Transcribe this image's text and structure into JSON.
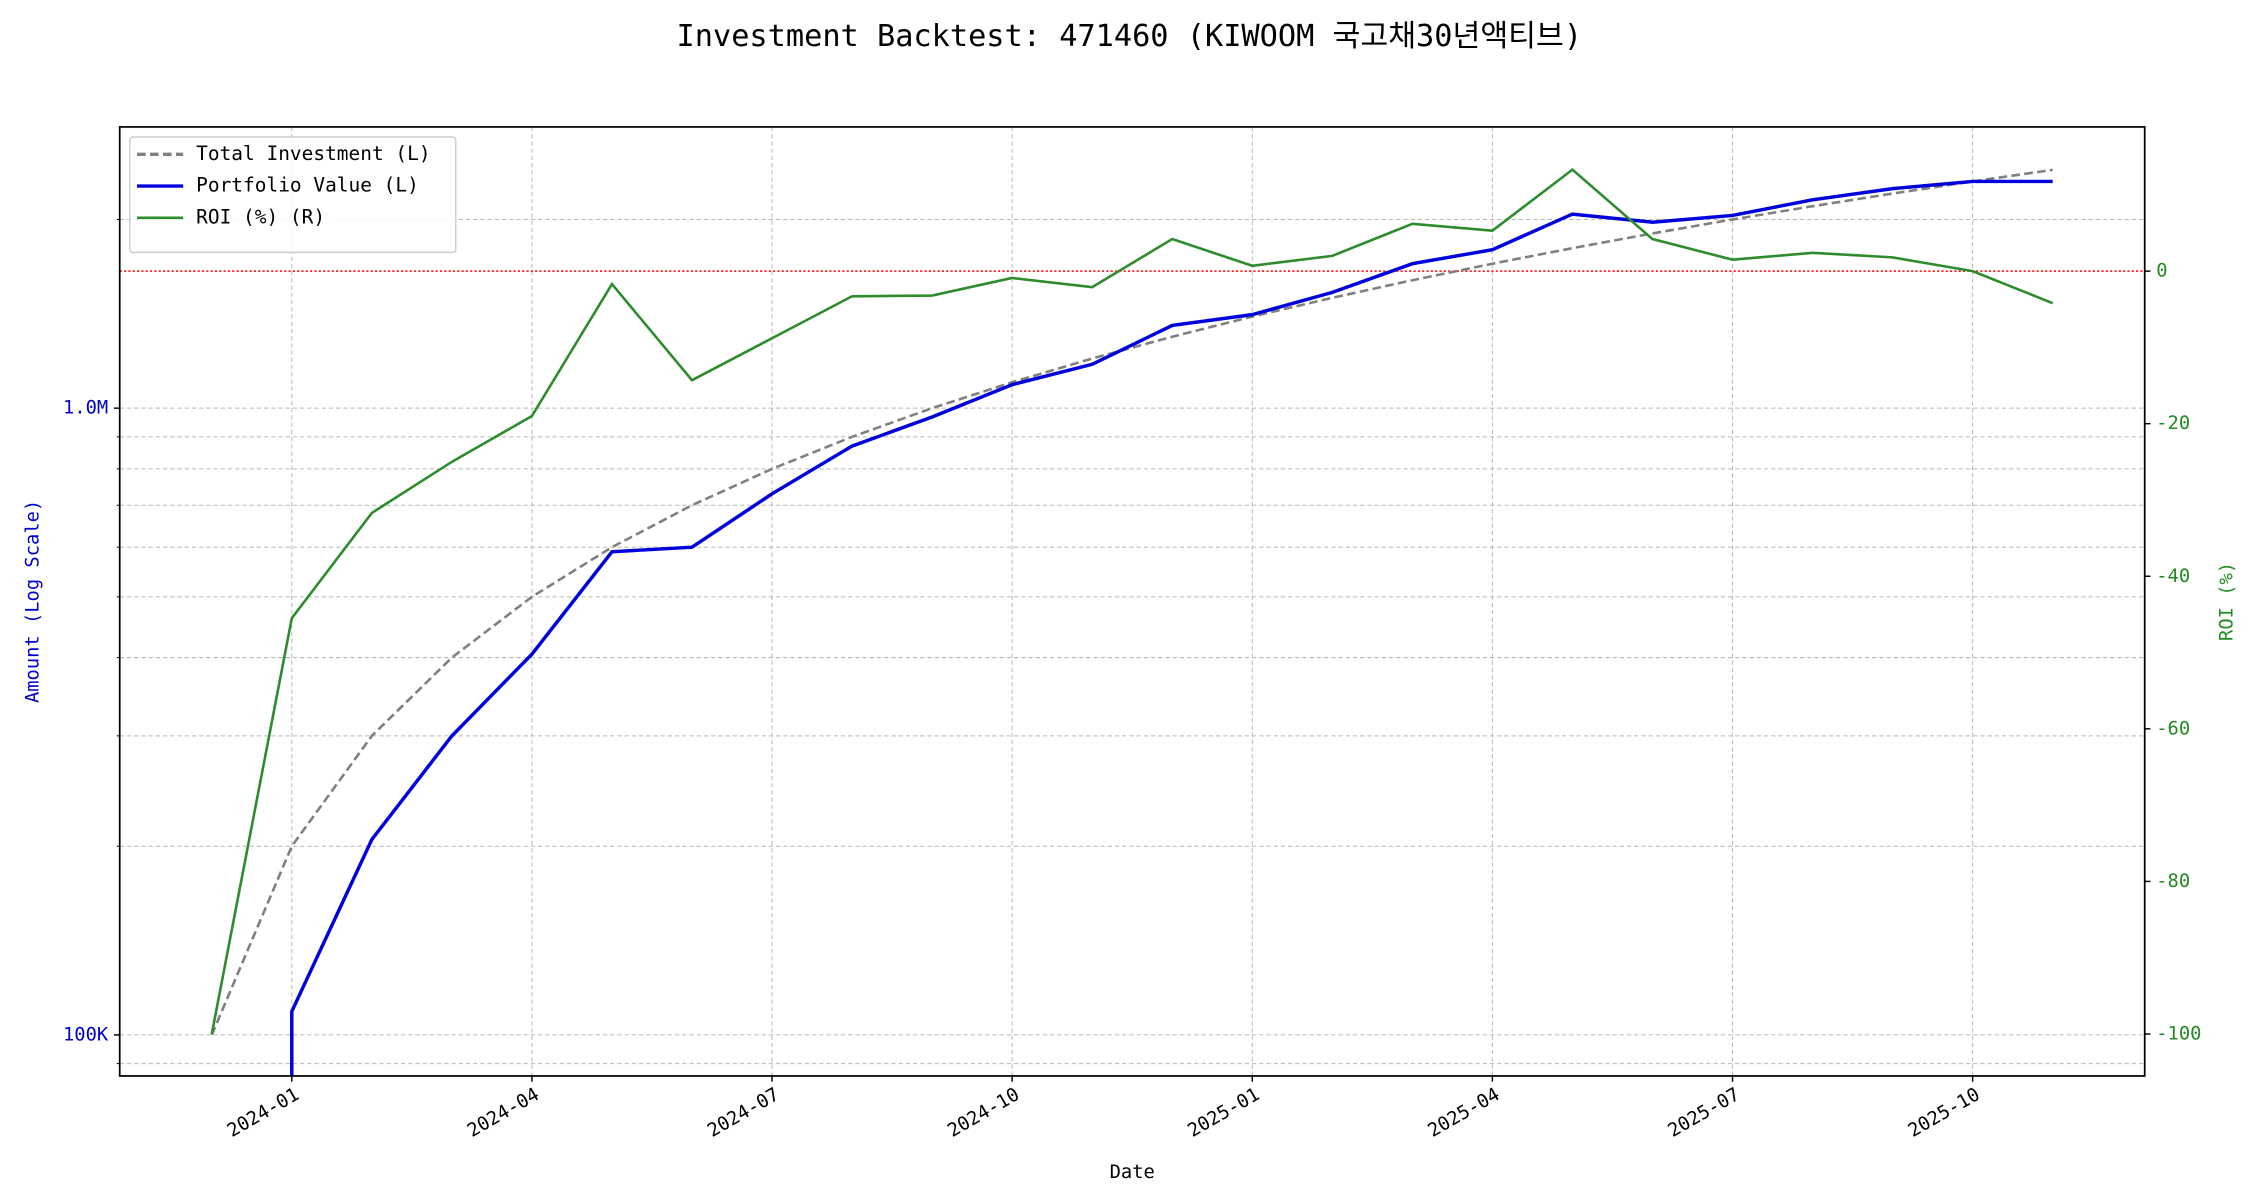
{
  "chart_data": {
    "type": "line",
    "title": "Investment Backtest: 471460 (KIWOOM 국고채30년액티브)",
    "x_label": "Date",
    "y_label": "Amount (Log Scale)",
    "y2_label": "ROI (%)",
    "x": [
      "2023-12",
      "2024-01",
      "2024-02",
      "2024-03",
      "2024-04",
      "2024-05",
      "2024-06",
      "2024-07",
      "2024-08",
      "2024-09",
      "2024-10",
      "2024-11",
      "2024-12",
      "2025-01",
      "2025-02",
      "2025-03",
      "2025-04",
      "2025-05",
      "2025-06",
      "2025-07",
      "2025-08",
      "2025-09",
      "2025-10",
      "2025-11"
    ],
    "xticks": [
      "2024-01",
      "2024-04",
      "2024-07",
      "2024-10",
      "2025-01",
      "2025-04",
      "2025-07",
      "2025-10"
    ],
    "series": [
      {
        "name": "Total Investment (L)",
        "color": "#808080",
        "linestyle": "dashed",
        "axis": "y",
        "values": [
          100000,
          200000,
          300000,
          400000,
          500000,
          600000,
          700000,
          800000,
          900000,
          1000000,
          1100000,
          1200000,
          1300000,
          1400000,
          1500000,
          1600000,
          1700000,
          1800000,
          1900000,
          2000000,
          2100000,
          2200000,
          2300000,
          2400000
        ]
      },
      {
        "name": "Portfolio Value (L)",
        "color": "#0000dd",
        "linestyle": "solid",
        "axis": "y",
        "values": [
          0,
          109000,
          205000,
          300000,
          405000,
          590000,
          600000,
          730000,
          870000,
          968000,
          1090000,
          1175000,
          1355000,
          1410000,
          1530000,
          1700000,
          1790000,
          2040000,
          1980000,
          2030000,
          2150000,
          2240000,
          2300000,
          2300000
        ]
      },
      {
        "name": "ROI (%) (R)",
        "color": "#2e8b2e",
        "linestyle": "solid",
        "axis": "y2",
        "values": [
          -100,
          -45.5,
          -31.7,
          -25,
          -19,
          -1.7,
          -14.3,
          -8.8,
          -3.3,
          -3.2,
          -0.9,
          -2.1,
          4.2,
          0.7,
          2,
          6.2,
          5.3,
          13.3,
          4.2,
          1.5,
          2.4,
          1.8,
          0,
          -4.2
        ]
      }
    ],
    "log_y": true,
    "ylim": [
      86000,
      2810000
    ],
    "yticks": [
      {
        "value": 100000,
        "label": "100K"
      },
      {
        "value": 1000000,
        "label": "1.0M"
      }
    ],
    "y_minor_ticks": [
      90000,
      200000,
      300000,
      400000,
      500000,
      600000,
      700000,
      800000,
      900000,
      2000000
    ],
    "y2lim": [
      -105.5,
      18.9
    ],
    "y2ticks": [
      -100,
      -80,
      -60,
      -40,
      -20,
      0
    ],
    "y2_reference_line": {
      "value": 0,
      "color": "#ff0000"
    },
    "y_label_color": "#0000cc",
    "y2_label_color": "#228b22",
    "grid": true,
    "legend": "upper-left"
  }
}
